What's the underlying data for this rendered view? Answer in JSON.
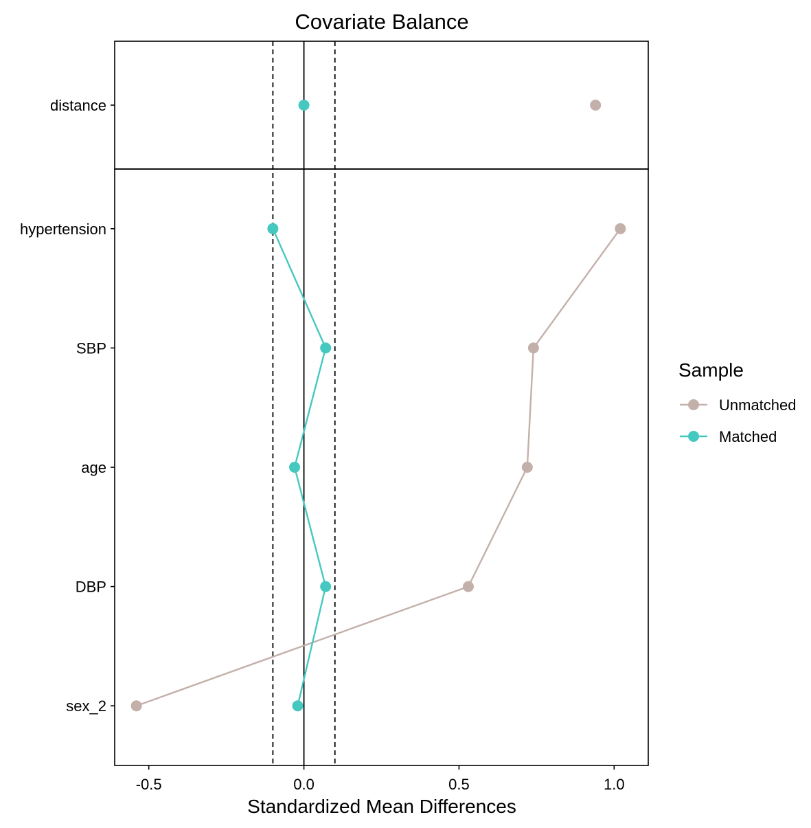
{
  "chart_data": {
    "type": "scatter",
    "title": "Covariate Balance",
    "xlabel": "Standardized Mean Differences",
    "ylabel": "",
    "xlim": [
      -0.61,
      1.11
    ],
    "x_ticks": [
      -0.5,
      0.0,
      0.5,
      1.0
    ],
    "x_tick_labels": [
      "-0.5",
      "0.0",
      "0.5",
      "1.0"
    ],
    "reference_line": 0.0,
    "threshold_lines": [
      -0.1,
      0.1
    ],
    "grid": false,
    "panels": [
      {
        "categories": [
          "distance"
        ]
      },
      {
        "categories": [
          "hypertension",
          "SBP",
          "age",
          "DBP",
          "sex_2"
        ]
      }
    ],
    "legend": {
      "title": "Sample",
      "position": "right",
      "entries": [
        "Unmatched",
        "Matched"
      ]
    },
    "series": [
      {
        "name": "Unmatched",
        "color": "#c4b0ab",
        "points": [
          {
            "y": "distance",
            "x": 0.94
          },
          {
            "y": "hypertension",
            "x": 1.02
          },
          {
            "y": "SBP",
            "x": 0.74
          },
          {
            "y": "age",
            "x": 0.72
          },
          {
            "y": "DBP",
            "x": 0.53
          },
          {
            "y": "sex_2",
            "x": -0.54
          }
        ]
      },
      {
        "name": "Matched",
        "color": "#45c8c0",
        "points": [
          {
            "y": "distance",
            "x": 0.0
          },
          {
            "y": "hypertension",
            "x": -0.1
          },
          {
            "y": "SBP",
            "x": 0.07
          },
          {
            "y": "age",
            "x": -0.03
          },
          {
            "y": "DBP",
            "x": 0.07
          },
          {
            "y": "sex_2",
            "x": -0.02
          }
        ]
      }
    ]
  }
}
